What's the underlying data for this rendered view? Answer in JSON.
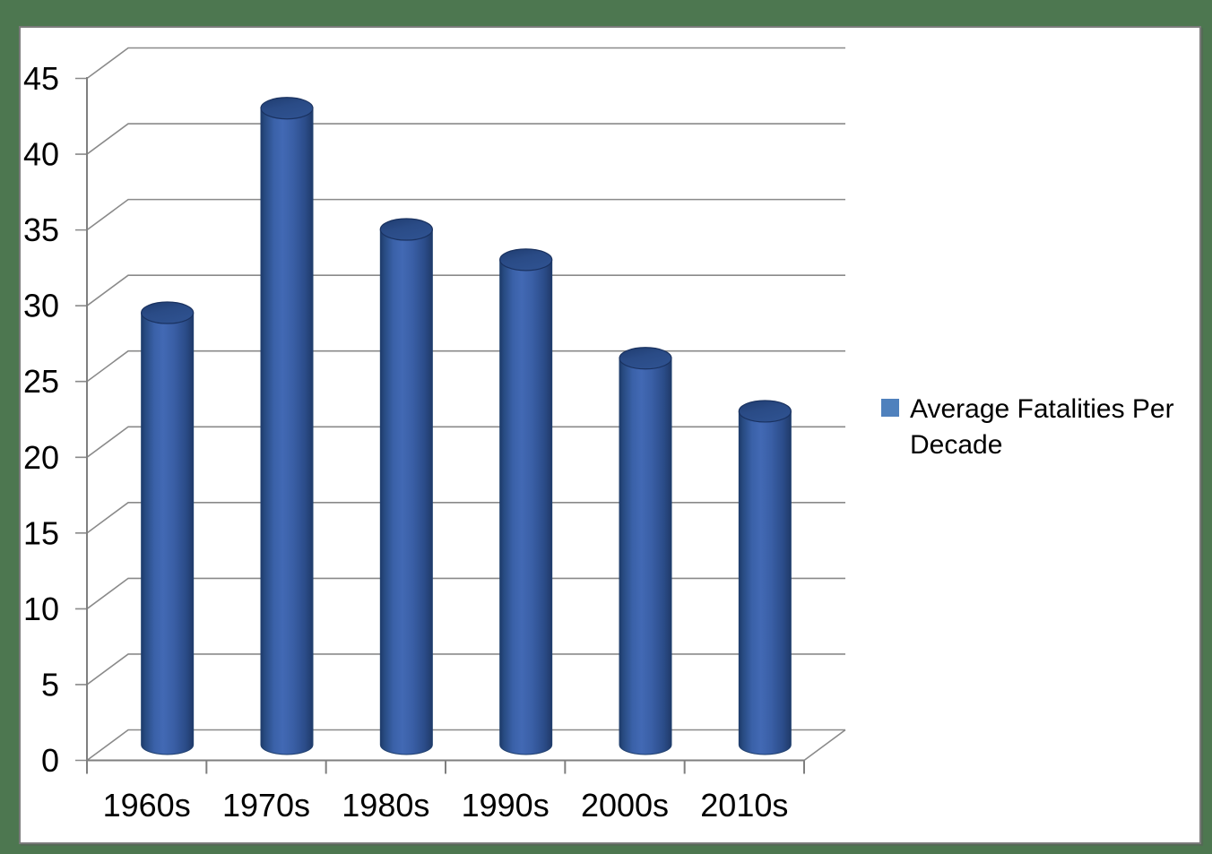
{
  "page": {
    "background_color": "#4d7750",
    "chart_background": "#ffffff",
    "frame_border_color": "#7b7b7b"
  },
  "chart_data": {
    "type": "bar",
    "subtype": "3d-cylinder",
    "title": "",
    "xlabel": "",
    "ylabel": "",
    "categories": [
      "1960s",
      "1970s",
      "1980s",
      "1990s",
      "2000s",
      "2010s"
    ],
    "series": [
      {
        "name": "Average Fatalities Per Decade",
        "values": [
          28.5,
          42,
          34,
          32,
          25.5,
          22
        ]
      }
    ],
    "ylim": [
      0,
      45
    ],
    "ytick_step": 5,
    "yticks": [
      0,
      5,
      10,
      15,
      20,
      25,
      30,
      35,
      40,
      45
    ],
    "grid": true,
    "legend_position": "right",
    "colors": {
      "bar_mid": "#3c63ae",
      "bar_light": "#4269b4",
      "bar_dark": "#1d3a6a",
      "bar_top": "#2a4b86",
      "legend_marker": "#4f81bd",
      "gridline": "#8a8a8a",
      "axis": "#7f7f7f",
      "text": "#000000"
    }
  }
}
